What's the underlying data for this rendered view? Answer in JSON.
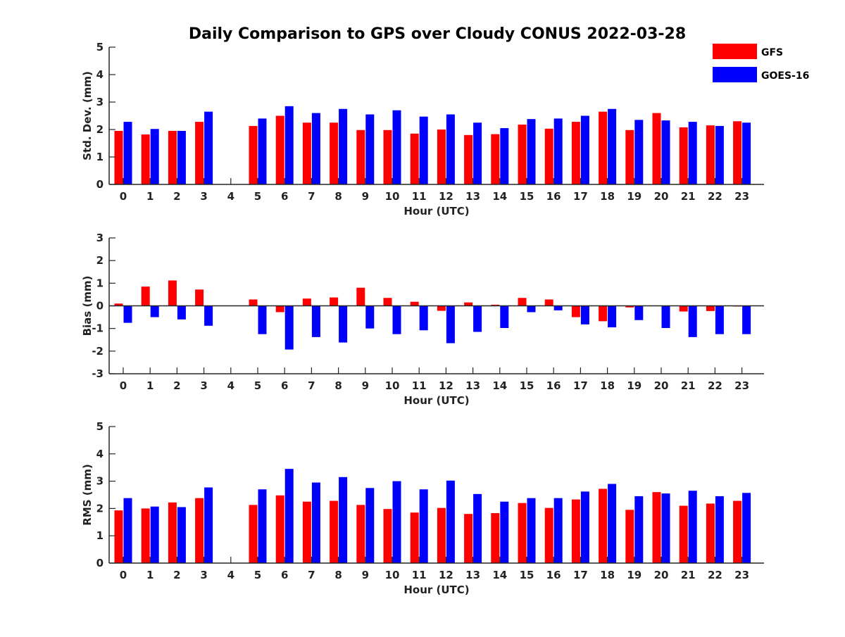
{
  "figure": {
    "title": "Daily Comparison to GPS over Cloudy CONUS 2022-03-28"
  },
  "legend": {
    "placement": "top-right",
    "entries": [
      {
        "name": "GFS",
        "color": "#ff0000"
      },
      {
        "name": "GOES-16",
        "color": "#0000ff"
      }
    ]
  },
  "chart_data": [
    {
      "type": "bar",
      "xlabel": "Hour (UTC)",
      "ylabel": "Std. Dev. (mm)",
      "ylim": [
        0,
        5
      ],
      "yticks": [
        0,
        1,
        2,
        3,
        4,
        5
      ],
      "categories": [
        "0",
        "1",
        "2",
        "3",
        "4",
        "5",
        "6",
        "7",
        "8",
        "9",
        "10",
        "11",
        "12",
        "13",
        "14",
        "15",
        "16",
        "17",
        "18",
        "19",
        "20",
        "21",
        "22",
        "23"
      ],
      "series": [
        {
          "name": "GFS",
          "color": "#ff0000",
          "values": [
            1.95,
            1.82,
            1.95,
            2.28,
            null,
            2.13,
            2.5,
            2.25,
            2.25,
            1.98,
            1.98,
            1.85,
            2.0,
            1.8,
            1.83,
            2.18,
            2.03,
            2.28,
            2.65,
            1.98,
            2.6,
            2.08,
            2.15,
            2.3
          ]
        },
        {
          "name": "GOES-16",
          "color": "#0000ff",
          "values": [
            2.28,
            2.02,
            1.95,
            2.65,
            null,
            2.4,
            2.85,
            2.6,
            2.75,
            2.55,
            2.7,
            2.47,
            2.55,
            2.25,
            2.05,
            2.38,
            2.4,
            2.5,
            2.75,
            2.35,
            2.33,
            2.28,
            2.13,
            2.25
          ]
        }
      ]
    },
    {
      "type": "bar",
      "xlabel": "Hour (UTC)",
      "ylabel": "Bias (mm)",
      "ylim": [
        -3,
        3
      ],
      "yticks": [
        -3,
        -2,
        -1,
        0,
        1,
        2,
        3
      ],
      "categories": [
        "0",
        "1",
        "2",
        "3",
        "4",
        "5",
        "6",
        "7",
        "8",
        "9",
        "10",
        "11",
        "12",
        "13",
        "14",
        "15",
        "16",
        "17",
        "18",
        "19",
        "20",
        "21",
        "22",
        "23"
      ],
      "series": [
        {
          "name": "GFS",
          "color": "#ff0000",
          "values": [
            0.1,
            0.85,
            1.12,
            0.72,
            null,
            0.28,
            -0.28,
            0.32,
            0.37,
            0.8,
            0.35,
            0.18,
            -0.22,
            0.15,
            0.05,
            0.35,
            0.28,
            -0.5,
            -0.68,
            -0.07,
            0.0,
            -0.25,
            -0.23,
            -0.03
          ]
        },
        {
          "name": "GOES-16",
          "color": "#0000ff",
          "values": [
            -0.75,
            -0.5,
            -0.6,
            -0.88,
            null,
            -1.25,
            -1.93,
            -1.38,
            -1.62,
            -1.0,
            -1.25,
            -1.08,
            -1.65,
            -1.15,
            -0.98,
            -0.28,
            -0.2,
            -0.82,
            -0.95,
            -0.63,
            -0.98,
            -1.38,
            -1.25,
            -1.25
          ]
        }
      ]
    },
    {
      "type": "bar",
      "xlabel": "Hour (UTC)",
      "ylabel": "RMS (mm)",
      "ylim": [
        0,
        5
      ],
      "yticks": [
        0,
        1,
        2,
        3,
        4,
        5
      ],
      "categories": [
        "0",
        "1",
        "2",
        "3",
        "4",
        "5",
        "6",
        "7",
        "8",
        "9",
        "10",
        "11",
        "12",
        "13",
        "14",
        "15",
        "16",
        "17",
        "18",
        "19",
        "20",
        "21",
        "22",
        "23"
      ],
      "series": [
        {
          "name": "GFS",
          "color": "#ff0000",
          "values": [
            1.93,
            2.0,
            2.22,
            2.38,
            null,
            2.13,
            2.48,
            2.25,
            2.28,
            2.13,
            1.98,
            1.85,
            2.02,
            1.8,
            1.83,
            2.2,
            2.02,
            2.33,
            2.72,
            1.95,
            2.6,
            2.1,
            2.18,
            2.28
          ]
        },
        {
          "name": "GOES-16",
          "color": "#0000ff",
          "values": [
            2.38,
            2.07,
            2.05,
            2.77,
            null,
            2.7,
            3.45,
            2.95,
            3.15,
            2.75,
            3.0,
            2.7,
            3.02,
            2.53,
            2.25,
            2.38,
            2.38,
            2.62,
            2.9,
            2.45,
            2.55,
            2.65,
            2.45,
            2.57
          ]
        }
      ]
    }
  ]
}
